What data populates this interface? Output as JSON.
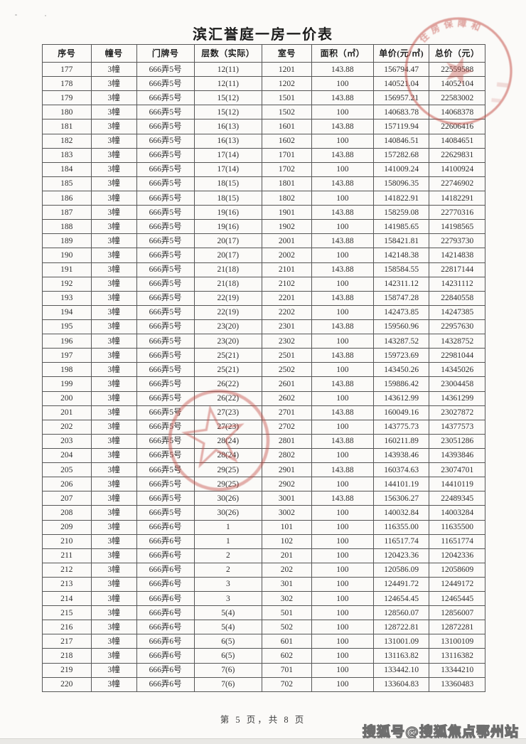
{
  "page": {
    "title": "滨汇誉庭一房一价表",
    "footer": "第 5 页，共 8 页",
    "watermark": "搜狐号@搜狐焦点鄂州站"
  },
  "table": {
    "headers": [
      "序号",
      "幢号",
      "门牌号",
      "层数（实际）",
      "室号",
      "面积（㎡）",
      "单价(元/㎡)",
      "总价（元）"
    ],
    "rows": [
      [
        "177",
        "3幢",
        "666弄5号",
        "12(11)",
        "1201",
        "143.88",
        "156794.47",
        "22559588"
      ],
      [
        "178",
        "3幢",
        "666弄5号",
        "12(11)",
        "1202",
        "100",
        "140521.04",
        "14052104"
      ],
      [
        "179",
        "3幢",
        "666弄5号",
        "15(12)",
        "1501",
        "143.88",
        "156957.21",
        "22583002"
      ],
      [
        "180",
        "3幢",
        "666弄5号",
        "15(12)",
        "1502",
        "100",
        "140683.78",
        "14068378"
      ],
      [
        "181",
        "3幢",
        "666弄5号",
        "16(13)",
        "1601",
        "143.88",
        "157119.94",
        "22606416"
      ],
      [
        "182",
        "3幢",
        "666弄5号",
        "16(13)",
        "1602",
        "100",
        "140846.51",
        "14084651"
      ],
      [
        "183",
        "3幢",
        "666弄5号",
        "17(14)",
        "1701",
        "143.88",
        "157282.68",
        "22629831"
      ],
      [
        "184",
        "3幢",
        "666弄5号",
        "17(14)",
        "1702",
        "100",
        "141009.24",
        "14100924"
      ],
      [
        "185",
        "3幢",
        "666弄5号",
        "18(15)",
        "1801",
        "143.88",
        "158096.35",
        "22746902"
      ],
      [
        "186",
        "3幢",
        "666弄5号",
        "18(15)",
        "1802",
        "100",
        "141822.91",
        "14182291"
      ],
      [
        "187",
        "3幢",
        "666弄5号",
        "19(16)",
        "1901",
        "143.88",
        "158259.08",
        "22770316"
      ],
      [
        "188",
        "3幢",
        "666弄5号",
        "19(16)",
        "1902",
        "100",
        "141985.65",
        "14198565"
      ],
      [
        "189",
        "3幢",
        "666弄5号",
        "20(17)",
        "2001",
        "143.88",
        "158421.81",
        "22793730"
      ],
      [
        "190",
        "3幢",
        "666弄5号",
        "20(17)",
        "2002",
        "100",
        "142148.38",
        "14214838"
      ],
      [
        "191",
        "3幢",
        "666弄5号",
        "21(18)",
        "2101",
        "143.88",
        "158584.55",
        "22817144"
      ],
      [
        "192",
        "3幢",
        "666弄5号",
        "21(18)",
        "2102",
        "100",
        "142311.12",
        "14231112"
      ],
      [
        "193",
        "3幢",
        "666弄5号",
        "22(19)",
        "2201",
        "143.88",
        "158747.28",
        "22840558"
      ],
      [
        "194",
        "3幢",
        "666弄5号",
        "22(19)",
        "2202",
        "100",
        "142473.85",
        "14247385"
      ],
      [
        "195",
        "3幢",
        "666弄5号",
        "23(20)",
        "2301",
        "143.88",
        "159560.96",
        "22957630"
      ],
      [
        "196",
        "3幢",
        "666弄5号",
        "23(20)",
        "2302",
        "100",
        "143287.52",
        "14328752"
      ],
      [
        "197",
        "3幢",
        "666弄5号",
        "25(21)",
        "2501",
        "143.88",
        "159723.69",
        "22981044"
      ],
      [
        "198",
        "3幢",
        "666弄5号",
        "25(21)",
        "2502",
        "100",
        "143450.26",
        "14345026"
      ],
      [
        "199",
        "3幢",
        "666弄5号",
        "26(22)",
        "2601",
        "143.88",
        "159886.42",
        "23004458"
      ],
      [
        "200",
        "3幢",
        "666弄5号",
        "26(22)",
        "2602",
        "100",
        "143612.99",
        "14361299"
      ],
      [
        "201",
        "3幢",
        "666弄5号",
        "27(23)",
        "2701",
        "143.88",
        "160049.16",
        "23027872"
      ],
      [
        "202",
        "3幢",
        "666弄5号",
        "27(23)",
        "2702",
        "100",
        "143775.73",
        "14377573"
      ],
      [
        "203",
        "3幢",
        "666弄5号",
        "28(24)",
        "2801",
        "143.88",
        "160211.89",
        "23051286"
      ],
      [
        "204",
        "3幢",
        "666弄5号",
        "28(24)",
        "2802",
        "100",
        "143938.46",
        "14393846"
      ],
      [
        "205",
        "3幢",
        "666弄5号",
        "29(25)",
        "2901",
        "143.88",
        "160374.63",
        "23074701"
      ],
      [
        "206",
        "3幢",
        "666弄5号",
        "29(25)",
        "2902",
        "100",
        "144101.19",
        "14410119"
      ],
      [
        "207",
        "3幢",
        "666弄5号",
        "30(26)",
        "3001",
        "143.88",
        "156306.27",
        "22489345"
      ],
      [
        "208",
        "3幢",
        "666弄5号",
        "30(26)",
        "3002",
        "100",
        "140032.84",
        "14003284"
      ],
      [
        "209",
        "3幢",
        "666弄6号",
        "1",
        "101",
        "100",
        "116355.00",
        "11635500"
      ],
      [
        "210",
        "3幢",
        "666弄6号",
        "1",
        "102",
        "100",
        "116517.74",
        "11651774"
      ],
      [
        "211",
        "3幢",
        "666弄6号",
        "2",
        "201",
        "100",
        "120423.36",
        "12042336"
      ],
      [
        "212",
        "3幢",
        "666弄6号",
        "2",
        "202",
        "100",
        "120586.09",
        "12058609"
      ],
      [
        "213",
        "3幢",
        "666弄6号",
        "3",
        "301",
        "100",
        "124491.72",
        "12449172"
      ],
      [
        "214",
        "3幢",
        "666弄6号",
        "3",
        "302",
        "100",
        "124654.45",
        "12465445"
      ],
      [
        "215",
        "3幢",
        "666弄6号",
        "5(4)",
        "501",
        "100",
        "128560.07",
        "12856007"
      ],
      [
        "216",
        "3幢",
        "666弄6号",
        "5(4)",
        "502",
        "100",
        "128722.81",
        "12872281"
      ],
      [
        "217",
        "3幢",
        "666弄6号",
        "6(5)",
        "601",
        "100",
        "131001.09",
        "13100109"
      ],
      [
        "218",
        "3幢",
        "666弄6号",
        "6(5)",
        "602",
        "100",
        "131163.82",
        "13116382"
      ],
      [
        "219",
        "3幢",
        "666弄6号",
        "7(6)",
        "701",
        "100",
        "133442.10",
        "13344210"
      ],
      [
        "220",
        "3幢",
        "666弄6号",
        "7(6)",
        "702",
        "100",
        "133604.83",
        "13360483"
      ]
    ]
  },
  "stamps": {
    "top_right_arc_text": "住房保障和",
    "color": "#c1473f"
  }
}
